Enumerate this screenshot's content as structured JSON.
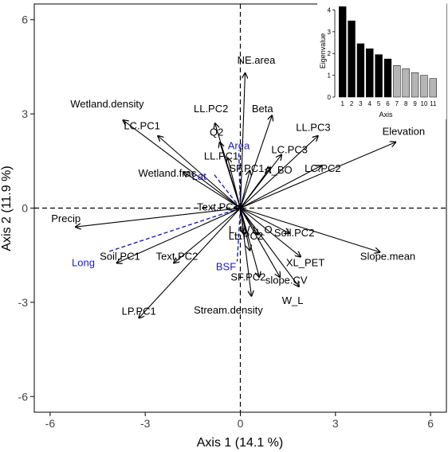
{
  "chart_data": [
    {
      "type": "biplot",
      "xlabel": "Axis 1 (14.1 %)",
      "ylabel": "Axis 2 (11.9 %)",
      "xlim": [
        -6.5,
        6.5
      ],
      "ylim": [
        -6.5,
        6.5
      ],
      "xticks": [
        -6,
        -3,
        0,
        3,
        6
      ],
      "yticks": [
        -6,
        -3,
        0,
        3,
        6
      ],
      "xtick_labels": [
        "-6",
        "-3",
        "0",
        "3",
        "6"
      ],
      "ytick_labels": [
        "-6",
        "-3",
        "0",
        "3",
        "6"
      ],
      "reference_lines": {
        "x": 0,
        "y": 0,
        "style": "dashed"
      },
      "colors": {
        "vectors": "#000000",
        "passive_vectors": "#1a1acc"
      },
      "vectors": [
        {
          "label": "NE.area",
          "x": 0.15,
          "y": 4.3
        },
        {
          "label": "Wetland.density",
          "x": -3.7,
          "y": 2.8
        },
        {
          "label": "LL.PC2",
          "x": -0.8,
          "y": 2.7
        },
        {
          "label": "Q2",
          "x": -0.65,
          "y": 2.1
        },
        {
          "label": "Beta",
          "x": 1.0,
          "y": 2.95
        },
        {
          "label": "LL.PC3",
          "x": 2.45,
          "y": 2.3
        },
        {
          "label": "Elevation",
          "x": 4.9,
          "y": 2.1
        },
        {
          "label": "LC.PC1",
          "x": -2.6,
          "y": 2.3
        },
        {
          "label": "LC.PC3",
          "x": 1.3,
          "y": 1.7
        },
        {
          "label": "LL.PC1",
          "x": -0.4,
          "y": 1.6
        },
        {
          "label": "A_BO",
          "x": 0.95,
          "y": 1.3
        },
        {
          "label": "LC.PC2",
          "x": 2.55,
          "y": 1.35
        },
        {
          "label": "SF.PC1",
          "x": 0.3,
          "y": 1.2
        },
        {
          "label": "Wetland.frac",
          "x": -1.8,
          "y": 1.15
        },
        {
          "label": "Text.PC1",
          "x": -0.2,
          "y": 0.02
        },
        {
          "label": "Precip",
          "x": -5.2,
          "y": -0.6
        },
        {
          "label": "Soil.PC2",
          "x": 1.55,
          "y": -0.8
        },
        {
          "label": "L_W",
          "x": 0.12,
          "y": -0.85
        },
        {
          "label": "L_O",
          "x": 0.55,
          "y": -0.85
        },
        {
          "label": "Slope.mean",
          "x": 4.4,
          "y": -1.4
        },
        {
          "label": "LL.PC2",
          "x": 0.3,
          "y": -1.35
        },
        {
          "label": "XL_PET",
          "x": 1.9,
          "y": -1.55
        },
        {
          "label": "Soil.PC1",
          "x": -3.9,
          "y": -1.75
        },
        {
          "label": "Text.PC2",
          "x": -2.1,
          "y": -1.75
        },
        {
          "label": "SF.PC2",
          "x": 0.6,
          "y": -2.2
        },
        {
          "label": "slope.CV",
          "x": 1.25,
          "y": -2.2
        },
        {
          "label": "W_L",
          "x": 1.85,
          "y": -2.5
        },
        {
          "label": "Stream.density",
          "x": 0.35,
          "y": -2.8
        },
        {
          "label": "LP.PC1",
          "x": -3.2,
          "y": -3.5
        }
      ],
      "passive_vectors": [
        {
          "label": "Area",
          "x": -0.05,
          "y": 1.85
        },
        {
          "label": "Lat",
          "x": -0.85,
          "y": 1.1
        },
        {
          "label": "Long",
          "x": -4.2,
          "y": -1.4
        },
        {
          "label": "BSF",
          "x": -0.1,
          "y": -1.7
        }
      ]
    },
    {
      "type": "bar",
      "xlabel": "Axis",
      "ylabel": "Eigenvalue",
      "categories": [
        "1",
        "2",
        "3",
        "4",
        "5",
        "6",
        "7",
        "8",
        "9",
        "10",
        "11"
      ],
      "values": [
        4.15,
        3.5,
        2.45,
        2.22,
        1.95,
        1.75,
        1.45,
        1.3,
        1.12,
        1.0,
        0.85
      ],
      "ylim": [
        0,
        4.2
      ],
      "yticks": [
        "0",
        "1",
        "2",
        "3",
        "4"
      ],
      "highlighted_count": 6,
      "colors": {
        "highlighted": "#000000",
        "other": "#b5b5b5"
      }
    }
  ]
}
